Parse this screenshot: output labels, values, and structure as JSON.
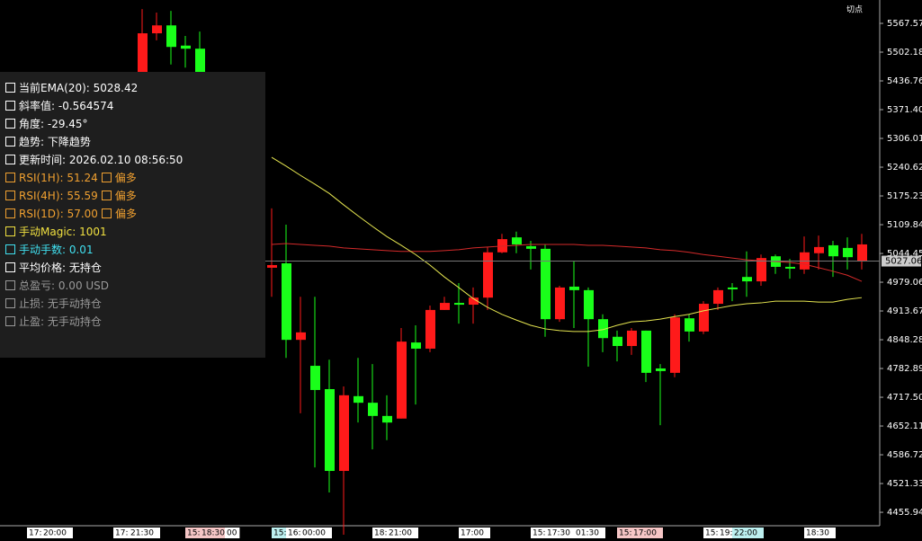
{
  "chart_data": {
    "type": "candlestick",
    "corner_label": "切点",
    "ylim": [
      4425.4,
      5620.7
    ],
    "yticks": [
      5567.57,
      5502.18,
      5436.76,
      {
        "value": 5371.4,
        "label": "5371.40"
      },
      5306.01,
      5240.62,
      5175.23,
      5109.84,
      5044.45,
      4979.06,
      4913.67,
      4848.28,
      4782.89,
      {
        "value": 4717.5,
        "label": "4717.50"
      },
      4652.11,
      4586.72,
      4521.33,
      4455.94
    ],
    "current_price": 5027.06,
    "up_color": "#ff1a1a",
    "down_color": "#1aff1a",
    "x_labels": [
      "17:",
      "20:00",
      "17:",
      "21:30",
      "15:",
      "18:30",
      "00",
      "15:",
      "16:",
      "00:00",
      "18:",
      "21:00",
      "17:00",
      "15:",
      "17:30",
      "01:30",
      "15:",
      "17:00",
      "15:",
      "19:",
      "22:00",
      "18:30"
    ],
    "open": [
      5396,
      5545,
      5563,
      5517,
      5510,
      null,
      null,
      null,
      null,
      5012,
      5022,
      4848,
      4789,
      4736,
      4550,
      4720,
      4705,
      4675,
      4669,
      4842,
      4828,
      4916,
      4932,
      4928,
      4944,
      5047,
      5081,
      5061,
      5055,
      4895,
      4969,
      4961,
      4895,
      4855,
      4834,
      4869,
      4783,
      4773,
      4897,
      4867,
      4930,
      4967,
      4991,
      4981,
      5038,
      5014,
      5008,
      5045,
      5063,
      5057,
      5028
    ],
    "high": [
      5600,
      5592,
      5596,
      5539,
      5549,
      null,
      null,
      null,
      null,
      5147,
      5110,
      4946,
      4946,
      4803,
      4742,
      4807,
      4793,
      4722,
      4875,
      4881,
      4926,
      4946,
      4977,
      4967,
      5059,
      5089,
      5094,
      5073,
      5065,
      4971,
      5028,
      4967,
      4906,
      4869,
      4875,
      4869,
      4793,
      4906,
      4906,
      4936,
      4967,
      4977,
      5049,
      5042,
      5042,
      5032,
      5083,
      5085,
      5073,
      5081,
      5089
    ],
    "low": [
      5375,
      5529,
      5474,
      5467,
      5396,
      null,
      null,
      null,
      null,
      4946,
      4807,
      4681,
      4558,
      4501,
      4405,
      4660,
      4599,
      4620,
      4669,
      4701,
      4820,
      4916,
      4885,
      4885,
      4916,
      5045,
      5045,
      5008,
      4855,
      4889,
      4875,
      4787,
      4820,
      4799,
      4814,
      4752,
      4654,
      4763,
      4844,
      4861,
      4916,
      4936,
      4946,
      4971,
      4998,
      4987,
      4998,
      5008,
      4991,
      5008,
      5008
    ],
    "close": [
      5545,
      5563,
      5514,
      5510,
      5416,
      null,
      null,
      null,
      null,
      5018,
      4848,
      4865,
      4734,
      4550,
      4722,
      4705,
      4675,
      4660,
      4844,
      4828,
      4916,
      4932,
      4928,
      4944,
      5047,
      5077,
      5065,
      5055,
      4895,
      4967,
      4961,
      4895,
      4852,
      4834,
      4869,
      4773,
      4777,
      4899,
      4867,
      4930,
      4961,
      4963,
      4981,
      5034,
      5014,
      5010,
      5047,
      5059,
      5038,
      5036,
      5065
    ],
    "series": [
      {
        "color": "#d42a2a",
        "values": [
          null,
          null,
          null,
          null,
          null,
          null,
          null,
          null,
          null,
          5065,
          5067,
          5065,
          5063,
          5061,
          5057,
          5055,
          5053,
          5051,
          5049,
          5049,
          5049,
          5051,
          5053,
          5057,
          5059,
          5061,
          5063,
          5065,
          5065,
          5065,
          5065,
          5063,
          5063,
          5061,
          5059,
          5057,
          5053,
          5051,
          5047,
          5042,
          5038,
          5034,
          5030,
          5028,
          5026,
          5024,
          5020,
          5012,
          5004,
          4995,
          4981
        ]
      },
      {
        "color": "#e6e650",
        "values": [
          null,
          null,
          null,
          null,
          null,
          null,
          null,
          null,
          null,
          5263,
          5243,
          5222,
          5202,
          5181,
          5155,
          5130,
          5106,
          5083,
          5063,
          5042,
          5018,
          4991,
          4967,
          4942,
          4922,
          4906,
          4893,
          4881,
          4873,
          4869,
          4867,
          4867,
          4871,
          4881,
          4889,
          4891,
          4895,
          4901,
          4906,
          4914,
          4920,
          4926,
          4930,
          4932,
          4936,
          4936,
          4936,
          4934,
          4934,
          4940,
          4944
        ]
      }
    ]
  },
  "panel": {
    "rows": [
      {
        "text": "当前EMA(20): 5028.42"
      },
      {
        "text": "斜率值: -0.564574"
      },
      {
        "text": "角度: -29.45°"
      },
      {
        "text": "趋势: 下降趋势"
      },
      {
        "text": "更新时间: 2026.02.10 08:56:50"
      },
      {
        "text": "RSI(1H): 51.24",
        "tag": "偏多"
      },
      {
        "text": "RSI(4H): 55.59",
        "tag": "偏多"
      },
      {
        "text": "RSI(1D): 57.00",
        "tag": "偏多"
      },
      {
        "text": "手动Magic: 1001"
      },
      {
        "text": "手动手数: 0.01"
      },
      {
        "text": "平均价格: 无持仓"
      },
      {
        "text": "总盈亏: 0.00 USD"
      },
      {
        "text": "止损: 无手动持仓"
      },
      {
        "text": "止盈: 无手动持仓"
      }
    ]
  }
}
